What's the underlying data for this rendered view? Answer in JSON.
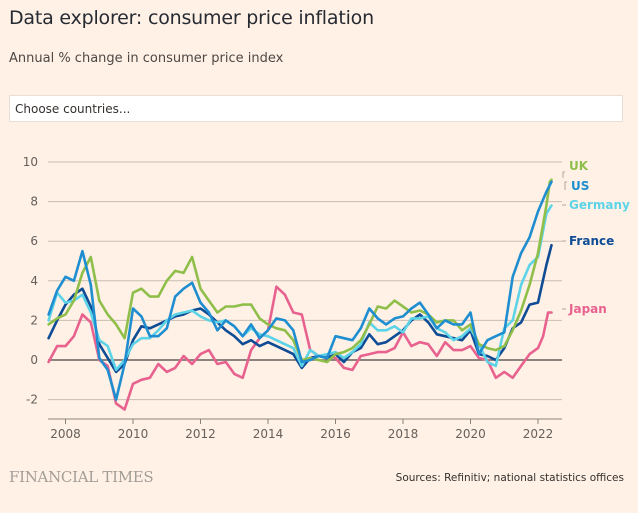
{
  "header": {
    "title": "Data explorer: consumer price inflation",
    "subtitle": "Annual % change in consumer price index"
  },
  "chooser": {
    "placeholder": "Choose countries..."
  },
  "footer": {
    "logo": "FINANCIAL TIMES",
    "source": "Sources: Refinitiv; national statistics offices"
  },
  "chart_data": {
    "type": "line",
    "title": "Data explorer: consumer price inflation",
    "subtitle": "Annual % change in consumer price index",
    "xlabel": "",
    "ylabel": "",
    "xlim": [
      2007.5,
      2022.7
    ],
    "ylim": [
      -3,
      10
    ],
    "x_ticks": [
      2008,
      2010,
      2012,
      2014,
      2016,
      2018,
      2020,
      2022
    ],
    "x_tick_labels": [
      "2008",
      "2010",
      "2012",
      "2014",
      "2016",
      "2018",
      "2020",
      "2022"
    ],
    "y_ticks": [
      -2,
      0,
      2,
      4,
      6,
      8,
      10
    ],
    "y_tick_labels": [
      "-2",
      "0",
      "2",
      "4",
      "6",
      "8",
      "10"
    ],
    "grid": true,
    "legend": "inline-right",
    "series": [
      {
        "name": "UK",
        "color": "#8fbf4a",
        "x": [
          2007.5,
          2007.75,
          2008.0,
          2008.25,
          2008.5,
          2008.75,
          2009.0,
          2009.25,
          2009.5,
          2009.75,
          2010.0,
          2010.25,
          2010.5,
          2010.75,
          2011.0,
          2011.25,
          2011.5,
          2011.75,
          2012.0,
          2012.25,
          2012.5,
          2012.75,
          2013.0,
          2013.25,
          2013.5,
          2013.75,
          2014.0,
          2014.25,
          2014.5,
          2014.75,
          2015.0,
          2015.25,
          2015.5,
          2015.75,
          2016.0,
          2016.25,
          2016.5,
          2016.75,
          2017.0,
          2017.25,
          2017.5,
          2017.75,
          2018.0,
          2018.25,
          2018.5,
          2018.75,
          2019.0,
          2019.25,
          2019.5,
          2019.75,
          2020.0,
          2020.25,
          2020.5,
          2020.75,
          2021.0,
          2021.25,
          2021.5,
          2021.75,
          2022.0,
          2022.25,
          2022.35,
          2022.4
        ],
        "values": [
          1.8,
          2.1,
          2.3,
          3.0,
          4.4,
          5.2,
          3.0,
          2.3,
          1.8,
          1.1,
          3.4,
          3.6,
          3.2,
          3.2,
          4.0,
          4.5,
          4.4,
          5.2,
          3.6,
          3.0,
          2.4,
          2.7,
          2.7,
          2.8,
          2.8,
          2.1,
          1.8,
          1.6,
          1.5,
          1.0,
          0.0,
          0.1,
          0.0,
          -0.1,
          0.3,
          0.4,
          0.6,
          1.0,
          1.8,
          2.7,
          2.6,
          3.0,
          2.7,
          2.4,
          2.5,
          2.3,
          1.9,
          2.0,
          2.0,
          1.5,
          1.8,
          0.8,
          0.6,
          0.5,
          0.7,
          1.5,
          2.5,
          3.8,
          5.4,
          7.8,
          9.0,
          9.1
        ]
      },
      {
        "name": "US",
        "color": "#1f8ed1",
        "x": [
          2007.5,
          2007.75,
          2008.0,
          2008.25,
          2008.5,
          2008.75,
          2009.0,
          2009.25,
          2009.5,
          2009.75,
          2010.0,
          2010.25,
          2010.5,
          2010.75,
          2011.0,
          2011.25,
          2011.5,
          2011.75,
          2012.0,
          2012.25,
          2012.5,
          2012.75,
          2013.0,
          2013.25,
          2013.5,
          2013.75,
          2014.0,
          2014.25,
          2014.5,
          2014.75,
          2015.0,
          2015.25,
          2015.5,
          2015.75,
          2016.0,
          2016.25,
          2016.5,
          2016.75,
          2017.0,
          2017.25,
          2017.5,
          2017.75,
          2018.0,
          2018.25,
          2018.5,
          2018.75,
          2019.0,
          2019.25,
          2019.5,
          2019.75,
          2020.0,
          2020.25,
          2020.5,
          2020.75,
          2021.0,
          2021.25,
          2021.5,
          2021.75,
          2022.0,
          2022.25,
          2022.4
        ],
        "values": [
          2.3,
          3.5,
          4.2,
          4.0,
          5.5,
          3.8,
          0.1,
          -0.5,
          -2.0,
          -0.2,
          2.6,
          2.2,
          1.2,
          1.2,
          1.6,
          3.2,
          3.6,
          3.9,
          2.9,
          2.4,
          1.5,
          2.0,
          1.7,
          1.2,
          1.8,
          1.1,
          1.5,
          2.1,
          2.0,
          1.5,
          -0.1,
          0.0,
          0.2,
          0.1,
          1.2,
          1.1,
          1.0,
          1.6,
          2.6,
          2.1,
          1.8,
          2.1,
          2.2,
          2.6,
          2.9,
          2.3,
          1.6,
          2.0,
          1.8,
          1.8,
          2.4,
          0.3,
          1.0,
          1.2,
          1.4,
          4.2,
          5.4,
          6.2,
          7.5,
          8.5,
          9.0
        ]
      },
      {
        "name": "Germany",
        "color": "#5dd3e8",
        "x": [
          2007.5,
          2007.75,
          2008.0,
          2008.25,
          2008.5,
          2008.75,
          2009.0,
          2009.25,
          2009.5,
          2009.75,
          2010.0,
          2010.25,
          2010.5,
          2010.75,
          2011.0,
          2011.25,
          2011.5,
          2011.75,
          2012.0,
          2012.25,
          2012.5,
          2012.75,
          2013.0,
          2013.25,
          2013.5,
          2013.75,
          2014.0,
          2014.25,
          2014.5,
          2014.75,
          2015.0,
          2015.25,
          2015.5,
          2015.75,
          2016.0,
          2016.25,
          2016.5,
          2016.75,
          2017.0,
          2017.25,
          2017.5,
          2017.75,
          2018.0,
          2018.25,
          2018.5,
          2018.75,
          2019.0,
          2019.25,
          2019.5,
          2019.75,
          2020.0,
          2020.25,
          2020.5,
          2020.75,
          2021.0,
          2021.25,
          2021.5,
          2021.75,
          2022.0,
          2022.25,
          2022.4
        ],
        "values": [
          2.0,
          3.4,
          2.9,
          3.0,
          3.3,
          2.4,
          1.0,
          0.7,
          -0.5,
          0.0,
          0.8,
          1.1,
          1.1,
          1.5,
          2.0,
          2.3,
          2.4,
          2.5,
          2.2,
          2.0,
          1.9,
          2.0,
          1.7,
          1.2,
          1.6,
          1.3,
          1.2,
          1.0,
          0.8,
          0.6,
          -0.3,
          0.5,
          0.2,
          0.3,
          0.4,
          0.1,
          0.4,
          0.8,
          1.9,
          1.5,
          1.5,
          1.7,
          1.4,
          2.1,
          2.1,
          2.2,
          1.6,
          1.4,
          1.0,
          1.2,
          1.6,
          0.8,
          -0.1,
          -0.3,
          1.6,
          2.0,
          3.8,
          4.8,
          5.2,
          7.4,
          7.8
        ]
      },
      {
        "name": "France",
        "color": "#0f4c96",
        "x": [
          2007.5,
          2007.75,
          2008.0,
          2008.25,
          2008.5,
          2008.75,
          2009.0,
          2009.25,
          2009.5,
          2009.75,
          2010.0,
          2010.25,
          2010.5,
          2010.75,
          2011.0,
          2011.25,
          2011.5,
          2011.75,
          2012.0,
          2012.25,
          2012.5,
          2012.75,
          2013.0,
          2013.25,
          2013.5,
          2013.75,
          2014.0,
          2014.25,
          2014.5,
          2014.75,
          2015.0,
          2015.25,
          2015.5,
          2015.75,
          2016.0,
          2016.25,
          2016.5,
          2016.75,
          2017.0,
          2017.25,
          2017.5,
          2017.75,
          2018.0,
          2018.25,
          2018.5,
          2018.75,
          2019.0,
          2019.25,
          2019.5,
          2019.75,
          2020.0,
          2020.25,
          2020.5,
          2020.75,
          2021.0,
          2021.25,
          2021.5,
          2021.75,
          2022.0,
          2022.25,
          2022.4
        ],
        "values": [
          1.1,
          2.0,
          2.8,
          3.3,
          3.6,
          2.7,
          0.8,
          0.1,
          -0.6,
          -0.2,
          1.0,
          1.7,
          1.6,
          1.8,
          2.0,
          2.2,
          2.3,
          2.5,
          2.6,
          2.3,
          1.9,
          1.5,
          1.2,
          0.8,
          1.0,
          0.7,
          0.9,
          0.7,
          0.5,
          0.3,
          -0.4,
          0.1,
          0.2,
          0.1,
          0.3,
          -0.1,
          0.4,
          0.6,
          1.3,
          0.8,
          0.9,
          1.2,
          1.5,
          2.0,
          2.3,
          1.9,
          1.3,
          1.2,
          1.1,
          1.0,
          1.5,
          0.3,
          0.2,
          0.0,
          0.6,
          1.6,
          1.9,
          2.8,
          2.9,
          4.8,
          5.8
        ]
      },
      {
        "name": "Japan",
        "color": "#e8628f",
        "x": [
          2007.5,
          2007.75,
          2008.0,
          2008.25,
          2008.5,
          2008.75,
          2009.0,
          2009.25,
          2009.5,
          2009.75,
          2010.0,
          2010.25,
          2010.5,
          2010.75,
          2011.0,
          2011.25,
          2011.5,
          2011.75,
          2012.0,
          2012.25,
          2012.5,
          2012.75,
          2013.0,
          2013.25,
          2013.5,
          2013.75,
          2014.0,
          2014.25,
          2014.5,
          2014.75,
          2015.0,
          2015.25,
          2015.5,
          2015.75,
          2016.0,
          2016.25,
          2016.5,
          2016.75,
          2017.0,
          2017.25,
          2017.5,
          2017.75,
          2018.0,
          2018.25,
          2018.5,
          2018.75,
          2019.0,
          2019.25,
          2019.5,
          2019.75,
          2020.0,
          2020.25,
          2020.5,
          2020.75,
          2021.0,
          2021.25,
          2021.5,
          2021.75,
          2022.0,
          2022.15,
          2022.3,
          2022.4
        ],
        "values": [
          -0.1,
          0.7,
          0.7,
          1.2,
          2.3,
          1.9,
          0.0,
          -0.3,
          -2.2,
          -2.5,
          -1.2,
          -1.0,
          -0.9,
          -0.2,
          -0.6,
          -0.4,
          0.2,
          -0.2,
          0.3,
          0.5,
          -0.2,
          -0.1,
          -0.7,
          -0.9,
          0.5,
          1.1,
          1.5,
          3.7,
          3.3,
          2.4,
          2.3,
          0.5,
          0.2,
          0.2,
          0.1,
          -0.4,
          -0.5,
          0.2,
          0.3,
          0.4,
          0.4,
          0.6,
          1.4,
          0.7,
          0.9,
          0.8,
          0.2,
          0.9,
          0.5,
          0.5,
          0.7,
          0.1,
          0.0,
          -0.9,
          -0.6,
          -0.9,
          -0.3,
          0.3,
          0.6,
          1.2,
          2.4,
          2.4
        ]
      }
    ],
    "labels": [
      {
        "series": "UK",
        "text": "UK"
      },
      {
        "series": "US",
        "text": "US"
      },
      {
        "series": "Germany",
        "text": "Germany"
      },
      {
        "series": "France",
        "text": "France"
      },
      {
        "series": "Japan",
        "text": "Japan"
      }
    ]
  }
}
